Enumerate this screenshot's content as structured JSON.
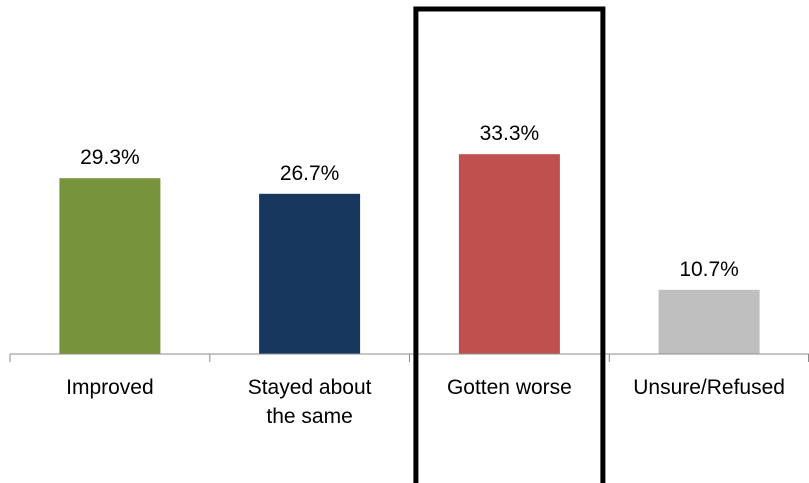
{
  "chart_data": {
    "type": "bar",
    "categories": [
      "Improved",
      "Stayed about the same",
      "Gotten worse",
      "Unsure/Refused"
    ],
    "category_lines": [
      [
        "Improved"
      ],
      [
        "Stayed about",
        "the same"
      ],
      [
        "Gotten worse"
      ],
      [
        "Unsure/Refused"
      ]
    ],
    "values": [
      29.3,
      26.7,
      33.3,
      10.7
    ],
    "data_labels": [
      "29.3%",
      "26.7%",
      "33.3%",
      "10.7%"
    ],
    "bar_colors": [
      "#77933c",
      "#17375e",
      "#c0504d",
      "#bfbfbf"
    ],
    "highlighted_category": "Gotten worse",
    "highlight_color": "#000000",
    "ylim": [
      0,
      40
    ],
    "grid": false,
    "legend": "none",
    "title": "",
    "xlabel": "",
    "ylabel": ""
  }
}
